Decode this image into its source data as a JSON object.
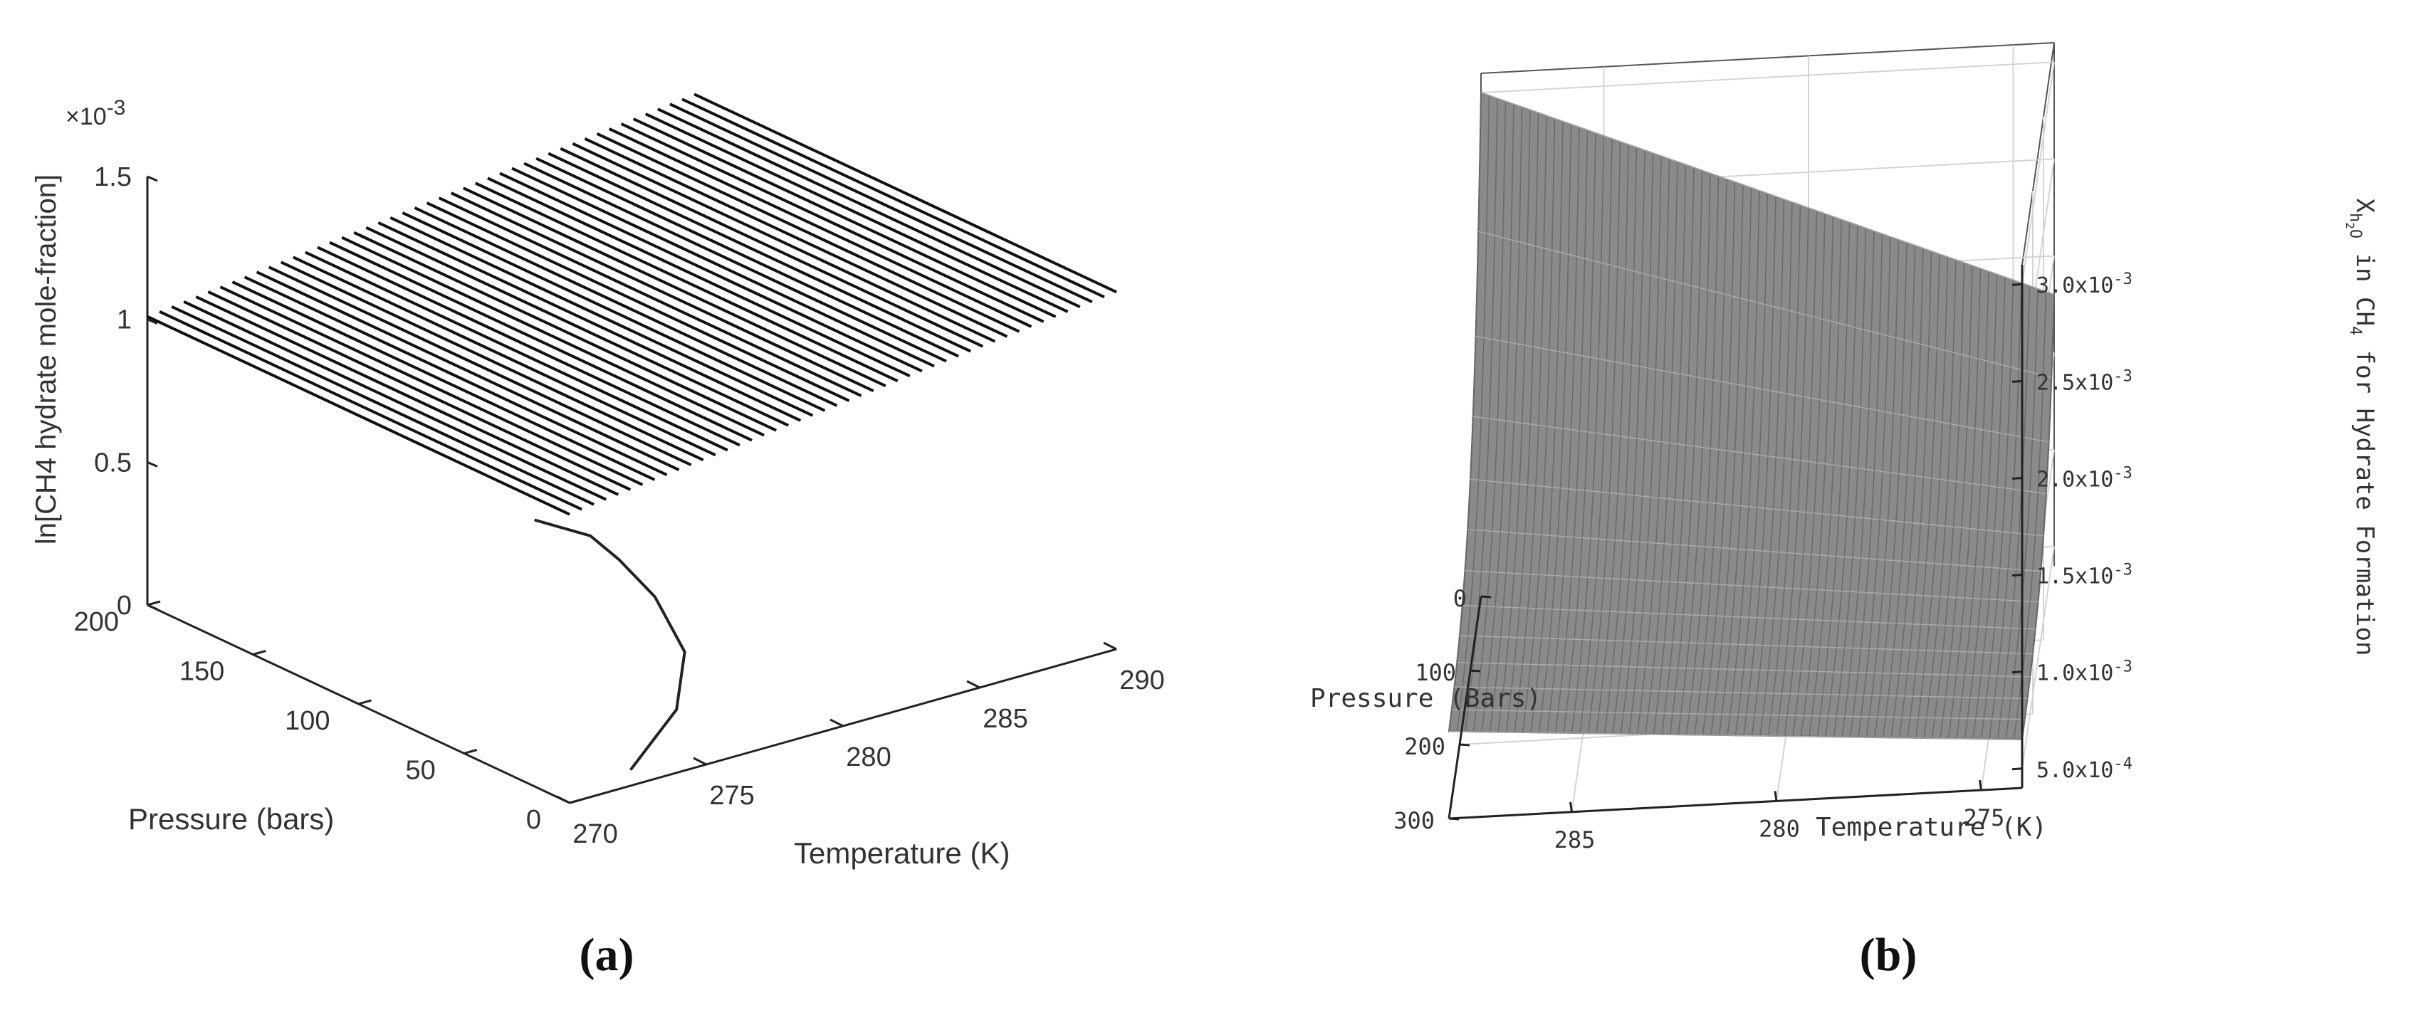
{
  "panel_labels": {
    "a": "(a)",
    "b": "(b)"
  },
  "chart_data": [
    {
      "panel": "a",
      "type": "surface3d",
      "xlabel": "Temperature (K)",
      "ylabel": "Pressure (bars)",
      "zlabel": "ln[CH4 hydrate mole-fraction]",
      "z_multiplier": "×10",
      "z_multiplier_exp": "-3",
      "xlim": [
        270,
        290
      ],
      "ylim": [
        0,
        200
      ],
      "zlim": [
        0,
        0.0015
      ],
      "xticks": [
        "270",
        "275",
        "280",
        "285",
        "290"
      ],
      "yticks": [
        "0",
        "50",
        "100",
        "150",
        "200"
      ],
      "zticks": [
        "0",
        "0.5",
        "1",
        "1.5"
      ],
      "grid": false,
      "surface": {
        "x_range": [
          270,
          290
        ],
        "y_range": [
          0,
          200
        ],
        "z_range": [
          0.00101,
          0.00125
        ],
        "mesh_lines": 46,
        "color": "#111111"
      },
      "curve": [
        {
          "x": 273,
          "y": 10,
          "z": 0
        },
        {
          "x": 277,
          "y": 40,
          "z": 0
        },
        {
          "x": 280,
          "y": 75,
          "z": 0
        },
        {
          "x": 282,
          "y": 115,
          "z": 0
        },
        {
          "x": 283,
          "y": 145,
          "z": 0
        },
        {
          "x": 283.5,
          "y": 165,
          "z": 0
        },
        {
          "x": 283,
          "y": 185,
          "z": 0
        }
      ]
    },
    {
      "panel": "b",
      "type": "surface3d",
      "xlabel": "Temperature (K)",
      "ylabel": "Pressure (Bars)",
      "zlabel_prefix": "X",
      "zlabel_sub": "h",
      "zlabel_subsub": "2",
      "zlabel_sub_end": "O",
      "zlabel_mid": " in CH",
      "zlabel_mid_sub": "4",
      "zlabel_end": " for Hydrate Formation",
      "xlim": [
        274,
        288
      ],
      "ylim": [
        0,
        300
      ],
      "zlim": [
        0.0004,
        0.0031
      ],
      "xticks": [
        "275",
        "280",
        "285"
      ],
      "yticks": [
        "0",
        "100",
        "200",
        "300"
      ],
      "zticks": [
        {
          "base": "5.0x10",
          "exp": "-4",
          "value": 0.0005
        },
        {
          "base": "1.0x10",
          "exp": "-3",
          "value": 0.001
        },
        {
          "base": "1.5x10",
          "exp": "-3",
          "value": 0.0015
        },
        {
          "base": "2.0x10",
          "exp": "-3",
          "value": 0.002
        },
        {
          "base": "2.5x10",
          "exp": "-3",
          "value": 0.0025
        },
        {
          "base": "3.0x10",
          "exp": "-3",
          "value": 0.003
        }
      ],
      "grid": true,
      "surface": {
        "corners": [
          {
            "x": 288,
            "y": 0,
            "z": 0.003
          },
          {
            "x": 274,
            "y": 0,
            "z": 0.0018
          },
          {
            "x": 274,
            "y": 300,
            "z": 0.00065
          },
          {
            "x": 288,
            "y": 300,
            "z": 0.00085
          }
        ],
        "color": "#8a8a8a"
      }
    }
  ]
}
